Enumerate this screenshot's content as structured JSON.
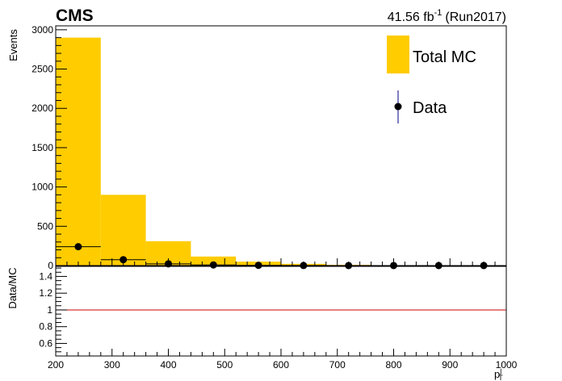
{
  "header": {
    "experiment": "CMS",
    "lumi_value": "41.56 fb",
    "lumi_exp": "-1",
    "run": "(Run2017)"
  },
  "colors": {
    "mc_fill": "#ffcc00",
    "data_marker": "#000000",
    "data_errorbar": "#00008b",
    "ratio_line": "#cc0000",
    "frame": "#000000"
  },
  "chart_data": [
    {
      "type": "bar",
      "panel": "main",
      "ylabel": "Events",
      "xlabel": "p",
      "xlabel_sup": "j",
      "xlabel_sub": "T",
      "xlim": [
        200,
        1000
      ],
      "ylim": [
        0,
        3050
      ],
      "yticks": [
        0,
        500,
        1000,
        1500,
        2000,
        2500,
        3000
      ],
      "legend_position": "top-right",
      "series": [
        {
          "name": "Total MC",
          "style": "filled-histogram",
          "bin_edges": [
            200,
            280,
            360,
            440,
            520,
            600,
            680,
            760,
            840,
            920,
            1000
          ],
          "values": [
            2900,
            900,
            310,
            115,
            50,
            22,
            10,
            5,
            3,
            2
          ]
        },
        {
          "name": "Data",
          "style": "markers",
          "x": [
            240,
            320,
            400,
            480,
            560,
            640,
            720,
            800,
            880,
            960
          ],
          "y": [
            240,
            75,
            22,
            8,
            3,
            1,
            0.5,
            0.5,
            0.3,
            0.2
          ]
        }
      ]
    },
    {
      "type": "line",
      "panel": "ratio",
      "ylabel": "Data/MC",
      "xlim": [
        200,
        1000
      ],
      "ylim": [
        0.45,
        1.52
      ],
      "yticks": [
        0.6,
        0.8,
        1,
        1.2,
        1.4
      ],
      "xticks": [
        200,
        300,
        400,
        500,
        600,
        700,
        800,
        900,
        1000
      ],
      "reference_line": 1
    }
  ]
}
